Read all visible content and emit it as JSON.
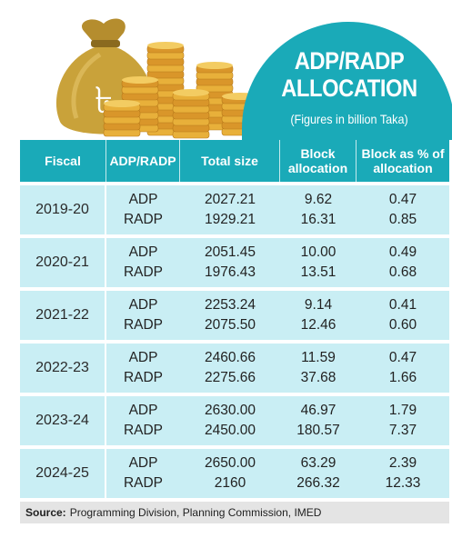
{
  "header": {
    "title_line1": "ADP/RADP",
    "title_line2": "ALLOCATION",
    "subtitle": "(Figures in billion Taka)",
    "currency_symbol": "৳"
  },
  "chart_data": {
    "type": "table",
    "columns": [
      "Fiscal",
      "ADP/RADP",
      "Total size",
      "Block allocation",
      "Block as % of allocation"
    ],
    "groups": [
      {
        "fiscal": "2019-20",
        "rows": [
          {
            "type": "ADP",
            "total": "2027.21",
            "block": "9.62",
            "pct": "0.47"
          },
          {
            "type": "RADP",
            "total": "1929.21",
            "block": "16.31",
            "pct": "0.85"
          }
        ]
      },
      {
        "fiscal": "2020-21",
        "rows": [
          {
            "type": "ADP",
            "total": "2051.45",
            "block": "10.00",
            "pct": "0.49"
          },
          {
            "type": "RADP",
            "total": "1976.43",
            "block": "13.51",
            "pct": "0.68"
          }
        ]
      },
      {
        "fiscal": "2021-22",
        "rows": [
          {
            "type": "ADP",
            "total": "2253.24",
            "block": "9.14",
            "pct": "0.41"
          },
          {
            "type": "RADP",
            "total": "2075.50",
            "block": "12.46",
            "pct": "0.60"
          }
        ]
      },
      {
        "fiscal": "2022-23",
        "rows": [
          {
            "type": "ADP",
            "total": "2460.66",
            "block": "11.59",
            "pct": "0.47"
          },
          {
            "type": "RADP",
            "total": "2275.66",
            "block": "37.68",
            "pct": "1.66"
          }
        ]
      },
      {
        "fiscal": "2023-24",
        "rows": [
          {
            "type": "ADP",
            "total": "2630.00",
            "block": "46.97",
            "pct": "1.79"
          },
          {
            "type": "RADP",
            "total": "2450.00",
            "block": "180.57",
            "pct": "7.37"
          }
        ]
      },
      {
        "fiscal": "2024-25",
        "rows": [
          {
            "type": "ADP",
            "total": "2650.00",
            "block": "63.29",
            "pct": "2.39"
          },
          {
            "type": "RADP",
            "total": "2160",
            "block": "266.32",
            "pct": "12.33"
          }
        ]
      }
    ]
  },
  "source": {
    "label": "Source:",
    "text": "Programming Division, Planning Commission, IMED"
  },
  "colors": {
    "teal": "#1aaab8",
    "row_bg": "#c9eef4",
    "gold": "#e0a72a",
    "bag": "#c9a23a"
  }
}
